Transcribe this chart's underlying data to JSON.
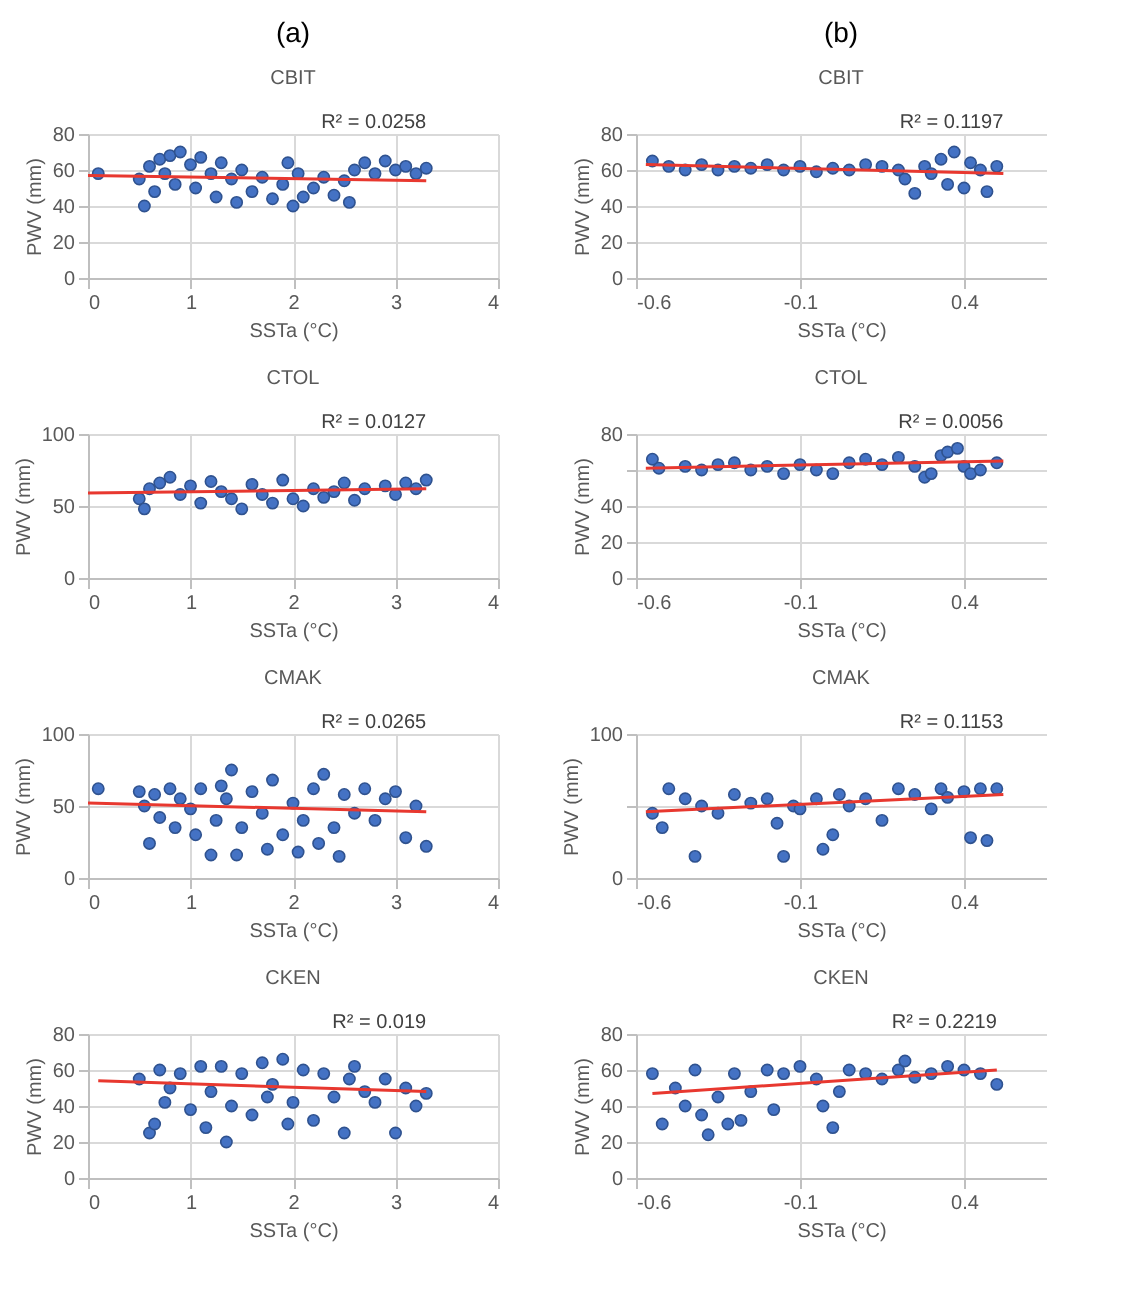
{
  "chart_data": [
    {
      "type": "scatter",
      "title": "CBIT",
      "annotations": [
        "(a)"
      ],
      "xlabel": "SSTa (°C)",
      "ylabel": "PWV (mm)",
      "xlim": [
        0,
        4
      ],
      "xticks": [
        0,
        1,
        2,
        3,
        4
      ],
      "ylim": [
        0,
        80
      ],
      "yticks": [
        0,
        20,
        40,
        60,
        80
      ],
      "grid": true,
      "marker": "circle",
      "series": [
        {
          "color": "#4472c4",
          "x": [
            0.1,
            0.5,
            0.55,
            0.6,
            0.65,
            0.7,
            0.75,
            0.8,
            0.85,
            0.9,
            1.0,
            1.05,
            1.1,
            1.2,
            1.25,
            1.3,
            1.4,
            1.45,
            1.5,
            1.6,
            1.7,
            1.8,
            1.9,
            1.95,
            2.0,
            2.05,
            2.1,
            2.2,
            2.3,
            2.4,
            2.5,
            2.55,
            2.6,
            2.7,
            2.8,
            2.9,
            3.0,
            3.1,
            3.2,
            3.3
          ],
          "values": [
            58,
            55,
            40,
            62,
            48,
            66,
            58,
            68,
            52,
            70,
            63,
            50,
            67,
            58,
            45,
            64,
            55,
            42,
            60,
            48,
            56,
            44,
            52,
            64,
            40,
            58,
            45,
            50,
            56,
            46,
            54,
            42,
            60,
            64,
            58,
            65,
            60,
            62,
            58,
            61
          ]
        },
        {
          "type": "line",
          "marker": "none",
          "name": "R² = 0.0258",
          "color": "#e8382f",
          "x": [
            0,
            3.3
          ],
          "values": [
            57,
            54
          ]
        }
      ]
    },
    {
      "type": "scatter",
      "title": "CBIT",
      "annotations": [
        "(b)"
      ],
      "xlabel": "SSTa (°C)",
      "ylabel": "PWV (mm)",
      "xlim": [
        -0.6,
        0.65
      ],
      "xticks": [
        -0.6,
        -0.1,
        0.4
      ],
      "ylim": [
        0,
        80
      ],
      "yticks": [
        0,
        20,
        40,
        60,
        80
      ],
      "grid": true,
      "marker": "circle",
      "series": [
        {
          "color": "#4472c4",
          "x": [
            -0.55,
            -0.5,
            -0.45,
            -0.4,
            -0.35,
            -0.3,
            -0.25,
            -0.2,
            -0.15,
            -0.1,
            -0.05,
            0.0,
            0.05,
            0.1,
            0.15,
            0.2,
            0.22,
            0.25,
            0.28,
            0.3,
            0.33,
            0.35,
            0.37,
            0.4,
            0.42,
            0.45,
            0.47,
            0.5
          ],
          "values": [
            65,
            62,
            60,
            63,
            60,
            62,
            61,
            63,
            60,
            62,
            59,
            61,
            60,
            63,
            62,
            60,
            55,
            47,
            62,
            58,
            66,
            52,
            70,
            50,
            64,
            60,
            48,
            62
          ]
        },
        {
          "type": "line",
          "marker": "none",
          "name": "R² = 0.1197",
          "color": "#e8382f",
          "x": [
            -0.57,
            0.52
          ],
          "values": [
            63,
            58
          ]
        }
      ]
    },
    {
      "type": "scatter",
      "title": "CTOL",
      "xlabel": "SSTa (°C)",
      "ylabel": "PWV (mm)",
      "xlim": [
        0,
        4
      ],
      "xticks": [
        0,
        1,
        2,
        3,
        4
      ],
      "ylim": [
        0,
        100
      ],
      "yticks": [
        0,
        50,
        100
      ],
      "grid": true,
      "marker": "circle",
      "series": [
        {
          "color": "#4472c4",
          "x": [
            0.5,
            0.55,
            0.6,
            0.7,
            0.8,
            0.9,
            1.0,
            1.1,
            1.2,
            1.3,
            1.4,
            1.5,
            1.6,
            1.7,
            1.8,
            1.9,
            2.0,
            2.1,
            2.2,
            2.3,
            2.4,
            2.5,
            2.6,
            2.7,
            2.9,
            3.0,
            3.1,
            3.2,
            3.3
          ],
          "values": [
            55,
            48,
            62,
            66,
            70,
            58,
            64,
            52,
            67,
            60,
            55,
            48,
            65,
            58,
            52,
            68,
            55,
            50,
            62,
            56,
            60,
            66,
            54,
            62,
            64,
            58,
            66,
            62,
            68
          ]
        },
        {
          "type": "line",
          "marker": "none",
          "name": "R² = 0.0127",
          "color": "#e8382f",
          "x": [
            0,
            3.3
          ],
          "values": [
            59,
            62
          ]
        }
      ]
    },
    {
      "type": "scatter",
      "title": "CTOL",
      "xlabel": "SSTa (°C)",
      "ylabel": "PWV (mm)",
      "xlim": [
        -0.6,
        0.65
      ],
      "xticks": [
        -0.6,
        -0.1,
        0.4
      ],
      "ylim": [
        0,
        80
      ],
      "yticks": [
        0,
        20,
        40,
        {
          "value": 60,
          "label": null
        },
        80
      ],
      "grid": true,
      "marker": "circle",
      "series": [
        {
          "color": "#4472c4",
          "x": [
            -0.55,
            -0.53,
            -0.45,
            -0.4,
            -0.35,
            -0.3,
            -0.25,
            -0.2,
            -0.15,
            -0.1,
            -0.05,
            0.0,
            0.05,
            0.1,
            0.15,
            0.2,
            0.25,
            0.28,
            0.3,
            0.33,
            0.35,
            0.38,
            0.4,
            0.42,
            0.45,
            0.5
          ],
          "values": [
            66,
            61,
            62,
            60,
            63,
            64,
            60,
            62,
            58,
            63,
            60,
            58,
            64,
            66,
            63,
            67,
            62,
            56,
            58,
            68,
            70,
            72,
            62,
            58,
            60,
            64
          ]
        },
        {
          "type": "line",
          "marker": "none",
          "name": "R² = 0.0056",
          "color": "#e8382f",
          "x": [
            -0.57,
            0.52
          ],
          "values": [
            61,
            65
          ]
        }
      ]
    },
    {
      "type": "scatter",
      "title": "CMAK",
      "xlabel": "SSTa (°C)",
      "ylabel": "PWV (mm)",
      "xlim": [
        0,
        4
      ],
      "xticks": [
        0,
        1,
        2,
        3,
        4
      ],
      "ylim": [
        0,
        100
      ],
      "yticks": [
        0,
        50,
        100
      ],
      "grid": true,
      "marker": "circle",
      "series": [
        {
          "color": "#4472c4",
          "x": [
            0.1,
            0.5,
            0.55,
            0.6,
            0.65,
            0.7,
            0.8,
            0.85,
            0.9,
            1.0,
            1.05,
            1.1,
            1.2,
            1.25,
            1.3,
            1.35,
            1.4,
            1.45,
            1.5,
            1.6,
            1.7,
            1.75,
            1.8,
            1.9,
            2.0,
            2.05,
            2.1,
            2.2,
            2.25,
            2.3,
            2.4,
            2.45,
            2.5,
            2.6,
            2.7,
            2.8,
            2.9,
            3.0,
            3.1,
            3.2,
            3.3
          ],
          "values": [
            62,
            60,
            50,
            24,
            58,
            42,
            62,
            35,
            55,
            48,
            30,
            62,
            16,
            40,
            64,
            55,
            75,
            16,
            35,
            60,
            45,
            20,
            68,
            30,
            52,
            18,
            40,
            62,
            24,
            72,
            35,
            15,
            58,
            45,
            62,
            40,
            55,
            60,
            28,
            50,
            22
          ]
        },
        {
          "type": "line",
          "marker": "none",
          "name": "R² = 0.0265",
          "color": "#e8382f",
          "x": [
            0,
            3.3
          ],
          "values": [
            52,
            46
          ]
        }
      ]
    },
    {
      "type": "scatter",
      "title": "CMAK",
      "xlabel": "SSTa (°C)",
      "ylabel": "PWV (mm)",
      "xlim": [
        -0.6,
        0.65
      ],
      "xticks": [
        -0.6,
        -0.1,
        0.4
      ],
      "ylim": [
        0,
        100
      ],
      "yticks": [
        0,
        {
          "value": 50,
          "label": null
        },
        100
      ],
      "grid": true,
      "marker": "circle",
      "series": [
        {
          "color": "#4472c4",
          "x": [
            -0.55,
            -0.52,
            -0.5,
            -0.45,
            -0.42,
            -0.4,
            -0.35,
            -0.3,
            -0.25,
            -0.2,
            -0.17,
            -0.15,
            -0.12,
            -0.1,
            -0.05,
            -0.03,
            0.0,
            0.02,
            0.05,
            0.1,
            0.15,
            0.2,
            0.25,
            0.3,
            0.33,
            0.35,
            0.4,
            0.42,
            0.45,
            0.47,
            0.5
          ],
          "values": [
            45,
            35,
            62,
            55,
            15,
            50,
            45,
            58,
            52,
            55,
            38,
            15,
            50,
            48,
            55,
            20,
            30,
            58,
            50,
            55,
            40,
            62,
            58,
            48,
            62,
            56,
            60,
            28,
            62,
            26,
            62
          ]
        },
        {
          "type": "line",
          "marker": "none",
          "name": "R² = 0.1153",
          "color": "#e8382f",
          "x": [
            -0.57,
            0.52
          ],
          "values": [
            46,
            58
          ]
        }
      ]
    },
    {
      "type": "scatter",
      "title": "CKEN",
      "xlabel": "SSTa (°C)",
      "ylabel": "PWV (mm)",
      "xlim": [
        0,
        4
      ],
      "xticks": [
        0,
        1,
        2,
        3,
        4
      ],
      "ylim": [
        0,
        80
      ],
      "yticks": [
        0,
        20,
        40,
        60,
        80
      ],
      "grid": true,
      "marker": "circle",
      "series": [
        {
          "color": "#4472c4",
          "x": [
            0.5,
            0.6,
            0.65,
            0.7,
            0.75,
            0.8,
            0.9,
            1.0,
            1.1,
            1.15,
            1.2,
            1.3,
            1.35,
            1.4,
            1.5,
            1.6,
            1.7,
            1.75,
            1.8,
            1.9,
            1.95,
            2.0,
            2.1,
            2.2,
            2.3,
            2.4,
            2.5,
            2.55,
            2.6,
            2.7,
            2.8,
            2.9,
            3.0,
            3.1,
            3.2,
            3.3
          ],
          "values": [
            55,
            25,
            30,
            60,
            42,
            50,
            58,
            38,
            62,
            28,
            48,
            62,
            20,
            40,
            58,
            35,
            64,
            45,
            52,
            66,
            30,
            42,
            60,
            32,
            58,
            45,
            25,
            55,
            62,
            48,
            42,
            55,
            25,
            50,
            40,
            47
          ]
        },
        {
          "type": "line",
          "marker": "none",
          "name": "R² = 0.019",
          "color": "#e8382f",
          "x": [
            0.1,
            3.3
          ],
          "values": [
            54,
            48
          ]
        }
      ]
    },
    {
      "type": "scatter",
      "title": "CKEN",
      "xlabel": "SSTa (°C)",
      "ylabel": "PWV (mm)",
      "xlim": [
        -0.6,
        0.65
      ],
      "xticks": [
        -0.6,
        -0.1,
        0.4
      ],
      "ylim": [
        0,
        80
      ],
      "yticks": [
        0,
        20,
        40,
        60,
        80
      ],
      "grid": true,
      "marker": "circle",
      "series": [
        {
          "color": "#4472c4",
          "x": [
            -0.55,
            -0.52,
            -0.48,
            -0.45,
            -0.42,
            -0.4,
            -0.38,
            -0.35,
            -0.32,
            -0.3,
            -0.28,
            -0.25,
            -0.2,
            -0.18,
            -0.15,
            -0.1,
            -0.05,
            -0.03,
            0.0,
            0.02,
            0.05,
            0.1,
            0.15,
            0.2,
            0.22,
            0.25,
            0.3,
            0.35,
            0.4,
            0.45,
            0.5
          ],
          "values": [
            58,
            30,
            50,
            40,
            60,
            35,
            24,
            45,
            30,
            58,
            32,
            48,
            60,
            38,
            58,
            62,
            55,
            40,
            28,
            48,
            60,
            58,
            55,
            60,
            65,
            56,
            58,
            62,
            60,
            58,
            52
          ]
        },
        {
          "type": "line",
          "marker": "none",
          "name": "R² = 0.2219",
          "color": "#e8382f",
          "x": [
            -0.55,
            0.5
          ],
          "values": [
            47,
            60
          ]
        }
      ]
    }
  ]
}
